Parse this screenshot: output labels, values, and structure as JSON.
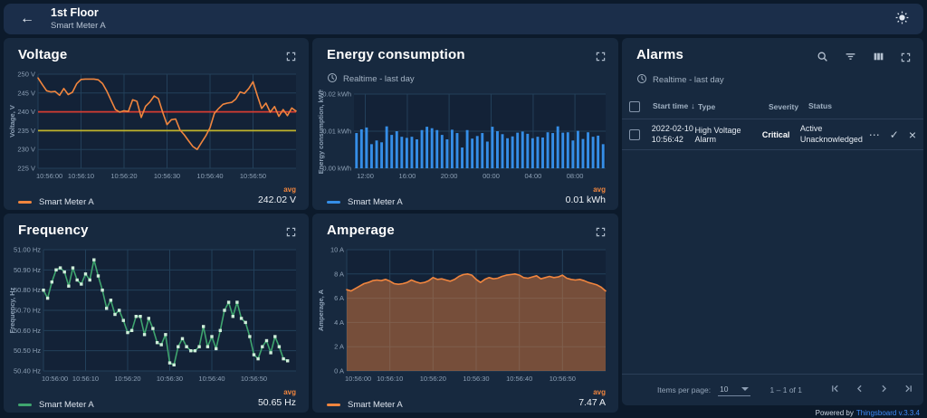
{
  "header": {
    "title": "1st Floor",
    "subtitle": "Smart Meter A"
  },
  "icons": {
    "back": "←",
    "sort_desc": "↓",
    "more": "⋯",
    "check": "✓",
    "close": "×"
  },
  "panels": {
    "voltage": {
      "title": "Voltage",
      "legend": "Smart Meter A",
      "agg_label": "avg",
      "agg_value": "242.02 V"
    },
    "energy": {
      "title": "Energy consumption",
      "subheader": "Realtime - last day",
      "legend": "Smart Meter A",
      "agg_label": "avg",
      "agg_value": "0.01 kWh"
    },
    "frequency": {
      "title": "Frequency",
      "legend": "Smart Meter A",
      "agg_label": "avg",
      "agg_value": "50.65 Hz"
    },
    "amperage": {
      "title": "Amperage",
      "legend": "Smart Meter A",
      "agg_label": "avg",
      "agg_value": "7.47 A"
    },
    "alarms": {
      "title": "Alarms",
      "subheader": "Realtime - last day",
      "columns": {
        "start": "Start time",
        "type": "Type",
        "severity": "Severity",
        "status": "Status"
      },
      "rows": [
        {
          "start_date": "2022-02-10",
          "start_time": "10:56:42",
          "type": "High Voltage Alarm",
          "severity": "Critical",
          "status_line1": "Active",
          "status_line2": "Unacknowledged"
        }
      ],
      "pagination": {
        "items_per_page_label": "Items per page:",
        "items_per_page": "10",
        "range": "1 – 1 of 1"
      }
    }
  },
  "footer": {
    "powered": "Powered by",
    "brand": "Thingsboard v.3.3.4"
  },
  "colors": {
    "orange": "#f0853e",
    "red_threshold": "#d43c32",
    "yellow_threshold": "#bfb32b",
    "blue": "#358ee7",
    "green": "#3fa56f",
    "grid": "#23405a",
    "tick_text": "#8da0b5"
  },
  "chart_data": [
    {
      "panel": "voltage",
      "type": "line",
      "title": "Voltage",
      "ylabel": "Voltage, V",
      "color": "#f0853e",
      "ml": 34,
      "ylim": [
        225,
        250
      ],
      "x_span": 60,
      "yticks": [
        {
          "v": 250,
          "label": "250 V"
        },
        {
          "v": 245,
          "label": "245 V"
        },
        {
          "v": 240,
          "label": "240 V"
        },
        {
          "v": 235,
          "label": "235 V"
        },
        {
          "v": 230,
          "label": "230 V"
        },
        {
          "v": 225,
          "label": "225 V"
        }
      ],
      "xticks": [
        {
          "f": 0,
          "label": "10:56:00"
        },
        {
          "f": 0.1667,
          "label": "10:56:10"
        },
        {
          "f": 0.3333,
          "label": "10:56:20"
        },
        {
          "f": 0.5,
          "label": "10:56:30"
        },
        {
          "f": 0.6667,
          "label": "10:56:40"
        },
        {
          "f": 0.8333,
          "label": "10:56:50"
        }
      ],
      "thresholds": [
        {
          "v": 240,
          "color": "#d43c32"
        },
        {
          "v": 235,
          "color": "#bfb32b"
        }
      ],
      "values": [
        249.0,
        247.2,
        245.6,
        245.3,
        245.4,
        244.4,
        246.2,
        244.6,
        245.2,
        247.5,
        248.6,
        248.7,
        248.7,
        248.7,
        248.5,
        247.5,
        245.5,
        243.0,
        240.6,
        239.9,
        240.3,
        240.1,
        243.2,
        242.8,
        238.5,
        241.5,
        242.6,
        244.2,
        243.5,
        239.8,
        236.6,
        237.9,
        238.1,
        235.2,
        233.9,
        232.3,
        230.8,
        230.0,
        231.8,
        233.6,
        235.8,
        239.6,
        240.9,
        242.0,
        242.3,
        242.5,
        243.4,
        245.3,
        244.9,
        246.2,
        248.0,
        244.3,
        240.9,
        242.3,
        239.9,
        241.4,
        238.8,
        240.6,
        239.0,
        241.0,
        240.2
      ]
    },
    {
      "panel": "energy",
      "type": "bar",
      "title": "Energy consumption",
      "ylabel": "Energy consumption, kWh",
      "color": "#358ee7",
      "ml": 42,
      "ylim": [
        0,
        0.02
      ],
      "yticks": [
        {
          "v": 0.02,
          "label": "0.02 kWh"
        },
        {
          "v": 0.01,
          "label": "0.01 kWh"
        },
        {
          "v": 0,
          "label": "0.00 kWh"
        }
      ],
      "xticks": [
        {
          "f": 0.045,
          "label": "12:00"
        },
        {
          "f": 0.212,
          "label": "16:00"
        },
        {
          "f": 0.378,
          "label": "20:00"
        },
        {
          "f": 0.545,
          "label": "00:00"
        },
        {
          "f": 0.712,
          "label": "04:00"
        },
        {
          "f": 0.878,
          "label": "08:00"
        }
      ],
      "values": [
        0.0095,
        0.0105,
        0.011,
        0.0065,
        0.0075,
        0.007,
        0.0113,
        0.009,
        0.01,
        0.0085,
        0.0082,
        0.0085,
        0.0078,
        0.0103,
        0.0112,
        0.0108,
        0.0103,
        0.009,
        0.0078,
        0.0104,
        0.0095,
        0.0056,
        0.0103,
        0.008,
        0.0087,
        0.0095,
        0.0072,
        0.0112,
        0.01,
        0.0092,
        0.0081,
        0.0086,
        0.0096,
        0.0099,
        0.0093,
        0.0081,
        0.0085,
        0.0083,
        0.0097,
        0.0095,
        0.0113,
        0.0096,
        0.0097,
        0.0075,
        0.0101,
        0.0079,
        0.0097,
        0.0085,
        0.0088,
        0.0065
      ]
    },
    {
      "panel": "frequency",
      "type": "line",
      "title": "Frequency",
      "ylabel": "Frequency, Hz",
      "color": "#3fa56f",
      "marker_color": "#cfeeda",
      "markers": true,
      "ml": 40,
      "ylim": [
        50.4,
        51.0
      ],
      "x_span": 60,
      "yticks": [
        {
          "v": 51.0,
          "label": "51.00 Hz"
        },
        {
          "v": 50.9,
          "label": "50.90 Hz"
        },
        {
          "v": 50.8,
          "label": "50.80 Hz"
        },
        {
          "v": 50.7,
          "label": "50.70 Hz"
        },
        {
          "v": 50.6,
          "label": "50.60 Hz"
        },
        {
          "v": 50.5,
          "label": "50.50 Hz"
        },
        {
          "v": 50.4,
          "label": "50.40 Hz"
        }
      ],
      "xticks": [
        {
          "f": 0,
          "label": "10:56:00"
        },
        {
          "f": 0.1667,
          "label": "10:56:10"
        },
        {
          "f": 0.3333,
          "label": "10:56:20"
        },
        {
          "f": 0.5,
          "label": "10:56:30"
        },
        {
          "f": 0.6667,
          "label": "10:56:40"
        },
        {
          "f": 0.8333,
          "label": "10:56:50"
        }
      ],
      "values": [
        50.8,
        50.76,
        50.84,
        50.9,
        50.91,
        50.89,
        50.82,
        50.91,
        50.85,
        50.83,
        50.88,
        50.85,
        50.95,
        50.87,
        50.8,
        50.71,
        50.75,
        50.68,
        50.7,
        50.65,
        50.59,
        50.6,
        50.67,
        50.67,
        50.58,
        50.66,
        50.61,
        50.54,
        50.53,
        50.58,
        50.44,
        50.43,
        50.52,
        50.56,
        50.52,
        50.5,
        50.5,
        50.52,
        50.62,
        50.52,
        50.57,
        50.51,
        50.6,
        50.7,
        50.74,
        50.67,
        50.74,
        50.66,
        50.64,
        50.57,
        50.48,
        50.46,
        50.52,
        50.55,
        50.49,
        50.57,
        50.52,
        50.46,
        50.45
      ]
    },
    {
      "panel": "amperage",
      "type": "area",
      "title": "Amperage",
      "ylabel": "Amperage, A",
      "color": "#f0853e",
      "fill": "rgba(240,133,62,0.45)",
      "ml": 34,
      "ylim": [
        0,
        10
      ],
      "x_span": 60,
      "yticks": [
        {
          "v": 10,
          "label": "10 A"
        },
        {
          "v": 8,
          "label": "8 A"
        },
        {
          "v": 6,
          "label": "6 A"
        },
        {
          "v": 4,
          "label": "4 A"
        },
        {
          "v": 2,
          "label": "2 A"
        },
        {
          "v": 0,
          "label": "0 A"
        }
      ],
      "xticks": [
        {
          "f": 0,
          "label": "10:56:00"
        },
        {
          "f": 0.1667,
          "label": "10:56:10"
        },
        {
          "f": 0.3333,
          "label": "10:56:20"
        },
        {
          "f": 0.5,
          "label": "10:56:30"
        },
        {
          "f": 0.6667,
          "label": "10:56:40"
        },
        {
          "f": 0.8333,
          "label": "10:56:50"
        }
      ],
      "values": [
        6.7,
        6.6,
        6.8,
        7.0,
        7.2,
        7.3,
        7.45,
        7.5,
        7.45,
        7.55,
        7.4,
        7.2,
        7.15,
        7.2,
        7.3,
        7.5,
        7.35,
        7.25,
        7.3,
        7.45,
        7.7,
        7.55,
        7.6,
        7.5,
        7.4,
        7.55,
        7.8,
        7.95,
        8.0,
        7.9,
        7.55,
        7.3,
        7.55,
        7.7,
        7.6,
        7.65,
        7.8,
        7.9,
        7.95,
        8.0,
        7.9,
        7.7,
        7.65,
        7.75,
        7.85,
        7.6,
        7.7,
        7.8,
        7.7,
        7.75,
        7.9,
        7.65,
        7.55,
        7.5,
        7.55,
        7.45,
        7.3,
        7.2,
        7.1,
        6.9,
        6.6
      ]
    }
  ]
}
